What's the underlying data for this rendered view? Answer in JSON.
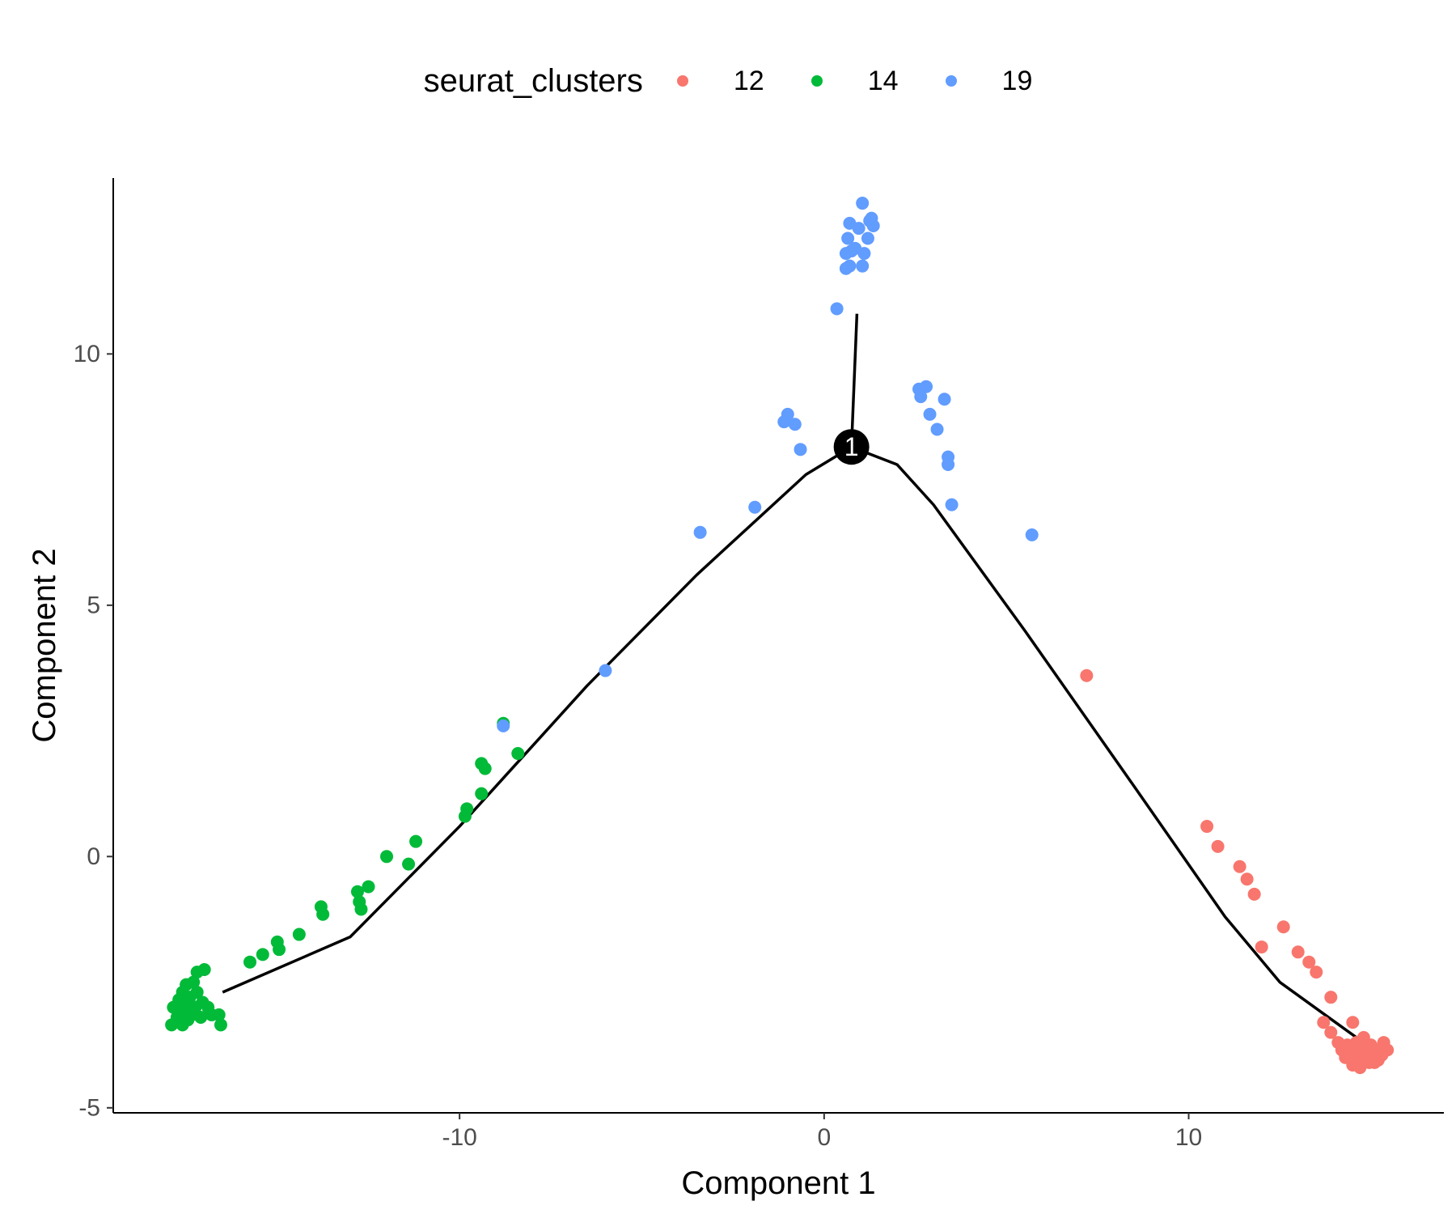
{
  "chart_data": {
    "type": "scatter",
    "title": "",
    "xlabel": "Component 1",
    "ylabel": "Component 2",
    "xlim": [
      -19.5,
      17
    ],
    "ylim": [
      -5.1,
      13.5
    ],
    "x_ticks": [
      -10,
      0,
      10
    ],
    "y_ticks": [
      -5,
      0,
      5,
      10
    ],
    "x_tick_labels": [
      "-10",
      "0",
      "10"
    ],
    "y_tick_labels": [
      "-5",
      "0",
      "5",
      "10"
    ],
    "grid": false,
    "legend": {
      "title": "seurat_clusters",
      "position": "top"
    },
    "branch_point": {
      "x": 0.75,
      "y": 8.15,
      "label": "1"
    },
    "trajectory": [
      {
        "name": "branch-left",
        "points": [
          [
            0.75,
            8.15
          ],
          [
            -0.5,
            7.6
          ],
          [
            -3.5,
            5.6
          ],
          [
            -6.5,
            3.4
          ],
          [
            -10,
            0.6
          ],
          [
            -13,
            -1.6
          ],
          [
            -16.5,
            -2.7
          ]
        ]
      },
      {
        "name": "branch-right",
        "points": [
          [
            0.75,
            8.15
          ],
          [
            2.0,
            7.8
          ],
          [
            3.0,
            7.0
          ],
          [
            5.5,
            4.5
          ],
          [
            8.5,
            1.4
          ],
          [
            11,
            -1.2
          ],
          [
            12.5,
            -2.5
          ],
          [
            14.6,
            -3.6
          ]
        ]
      },
      {
        "name": "branch-top",
        "points": [
          [
            0.75,
            8.15
          ],
          [
            0.9,
            10.8
          ]
        ]
      }
    ],
    "series": [
      {
        "name": "12",
        "color": "#F8766D",
        "points": [
          [
            7.2,
            3.6
          ],
          [
            10.5,
            0.6
          ],
          [
            10.8,
            0.2
          ],
          [
            11.4,
            -0.2
          ],
          [
            11.6,
            -0.45
          ],
          [
            11.8,
            -0.75
          ],
          [
            12.0,
            -1.8
          ],
          [
            12.6,
            -1.4
          ],
          [
            13.0,
            -1.9
          ],
          [
            13.3,
            -2.1
          ],
          [
            13.5,
            -2.3
          ],
          [
            13.9,
            -2.8
          ],
          [
            13.7,
            -3.3
          ],
          [
            13.9,
            -3.5
          ],
          [
            14.5,
            -3.3
          ],
          [
            14.1,
            -3.7
          ],
          [
            14.2,
            -3.85
          ],
          [
            14.3,
            -4.0
          ],
          [
            14.35,
            -3.75
          ],
          [
            14.45,
            -3.9
          ],
          [
            14.55,
            -4.05
          ],
          [
            14.6,
            -3.7
          ],
          [
            14.65,
            -3.85
          ],
          [
            14.75,
            -4.0
          ],
          [
            14.8,
            -3.6
          ],
          [
            14.85,
            -3.8
          ],
          [
            14.9,
            -3.95
          ],
          [
            15.0,
            -3.75
          ],
          [
            15.05,
            -3.9
          ],
          [
            15.1,
            -4.1
          ],
          [
            15.2,
            -3.85
          ],
          [
            15.3,
            -3.95
          ],
          [
            15.35,
            -3.7
          ],
          [
            15.45,
            -3.85
          ],
          [
            14.5,
            -4.15
          ],
          [
            14.7,
            -4.2
          ],
          [
            14.95,
            -4.1
          ],
          [
            15.2,
            -4.05
          ]
        ]
      },
      {
        "name": "14",
        "color": "#00BA38",
        "points": [
          [
            -8.4,
            2.05
          ],
          [
            -8.8,
            2.65
          ],
          [
            -9.3,
            1.75
          ],
          [
            -9.4,
            1.85
          ],
          [
            -9.4,
            1.25
          ],
          [
            -9.8,
            0.95
          ],
          [
            -9.85,
            0.8
          ],
          [
            -11.2,
            0.3
          ],
          [
            -11.4,
            -0.15
          ],
          [
            -12.0,
            0.0
          ],
          [
            -12.5,
            -0.6
          ],
          [
            -12.8,
            -0.7
          ],
          [
            -12.75,
            -0.9
          ],
          [
            -12.7,
            -1.05
          ],
          [
            -13.8,
            -1.0
          ],
          [
            -13.75,
            -1.15
          ],
          [
            -14.4,
            -1.55
          ],
          [
            -15.0,
            -1.7
          ],
          [
            -14.95,
            -1.85
          ],
          [
            -15.4,
            -1.95
          ],
          [
            -15.75,
            -2.1
          ],
          [
            -17.2,
            -2.3
          ],
          [
            -17.0,
            -2.25
          ],
          [
            -17.3,
            -2.5
          ],
          [
            -17.5,
            -2.55
          ],
          [
            -17.6,
            -2.7
          ],
          [
            -17.2,
            -2.7
          ],
          [
            -17.4,
            -2.8
          ],
          [
            -17.7,
            -2.85
          ],
          [
            -17.05,
            -2.9
          ],
          [
            -17.5,
            -2.95
          ],
          [
            -17.85,
            -3.0
          ],
          [
            -17.25,
            -3.0
          ],
          [
            -16.9,
            -3.0
          ],
          [
            -17.6,
            -3.1
          ],
          [
            -17.35,
            -3.15
          ],
          [
            -16.8,
            -3.15
          ],
          [
            -17.75,
            -3.2
          ],
          [
            -17.1,
            -3.2
          ],
          [
            -16.6,
            -3.15
          ],
          [
            -17.45,
            -3.25
          ],
          [
            -17.6,
            -3.35
          ],
          [
            -17.9,
            -3.35
          ],
          [
            -16.55,
            -3.35
          ]
        ]
      },
      {
        "name": "19",
        "color": "#619CFF",
        "points": [
          [
            1.05,
            13.0
          ],
          [
            1.25,
            12.65
          ],
          [
            1.35,
            12.55
          ],
          [
            1.3,
            12.7
          ],
          [
            0.95,
            12.5
          ],
          [
            0.7,
            12.6
          ],
          [
            1.2,
            12.3
          ],
          [
            0.65,
            12.3
          ],
          [
            0.75,
            12.05
          ],
          [
            0.6,
            12.0
          ],
          [
            1.1,
            12.0
          ],
          [
            0.85,
            12.1
          ],
          [
            0.7,
            11.75
          ],
          [
            1.05,
            11.75
          ],
          [
            0.6,
            11.7
          ],
          [
            0.35,
            10.9
          ],
          [
            -1.0,
            8.8
          ],
          [
            -1.1,
            8.65
          ],
          [
            -0.8,
            8.6
          ],
          [
            -0.65,
            8.1
          ],
          [
            2.6,
            9.3
          ],
          [
            2.8,
            9.35
          ],
          [
            2.65,
            9.15
          ],
          [
            2.9,
            8.8
          ],
          [
            3.3,
            9.1
          ],
          [
            3.1,
            8.5
          ],
          [
            3.4,
            7.95
          ],
          [
            3.4,
            7.8
          ],
          [
            3.5,
            7.0
          ],
          [
            5.7,
            6.4
          ],
          [
            -1.9,
            6.95
          ],
          [
            -3.4,
            6.45
          ],
          [
            -6.0,
            3.7
          ],
          [
            -8.8,
            2.6
          ]
        ]
      }
    ]
  }
}
